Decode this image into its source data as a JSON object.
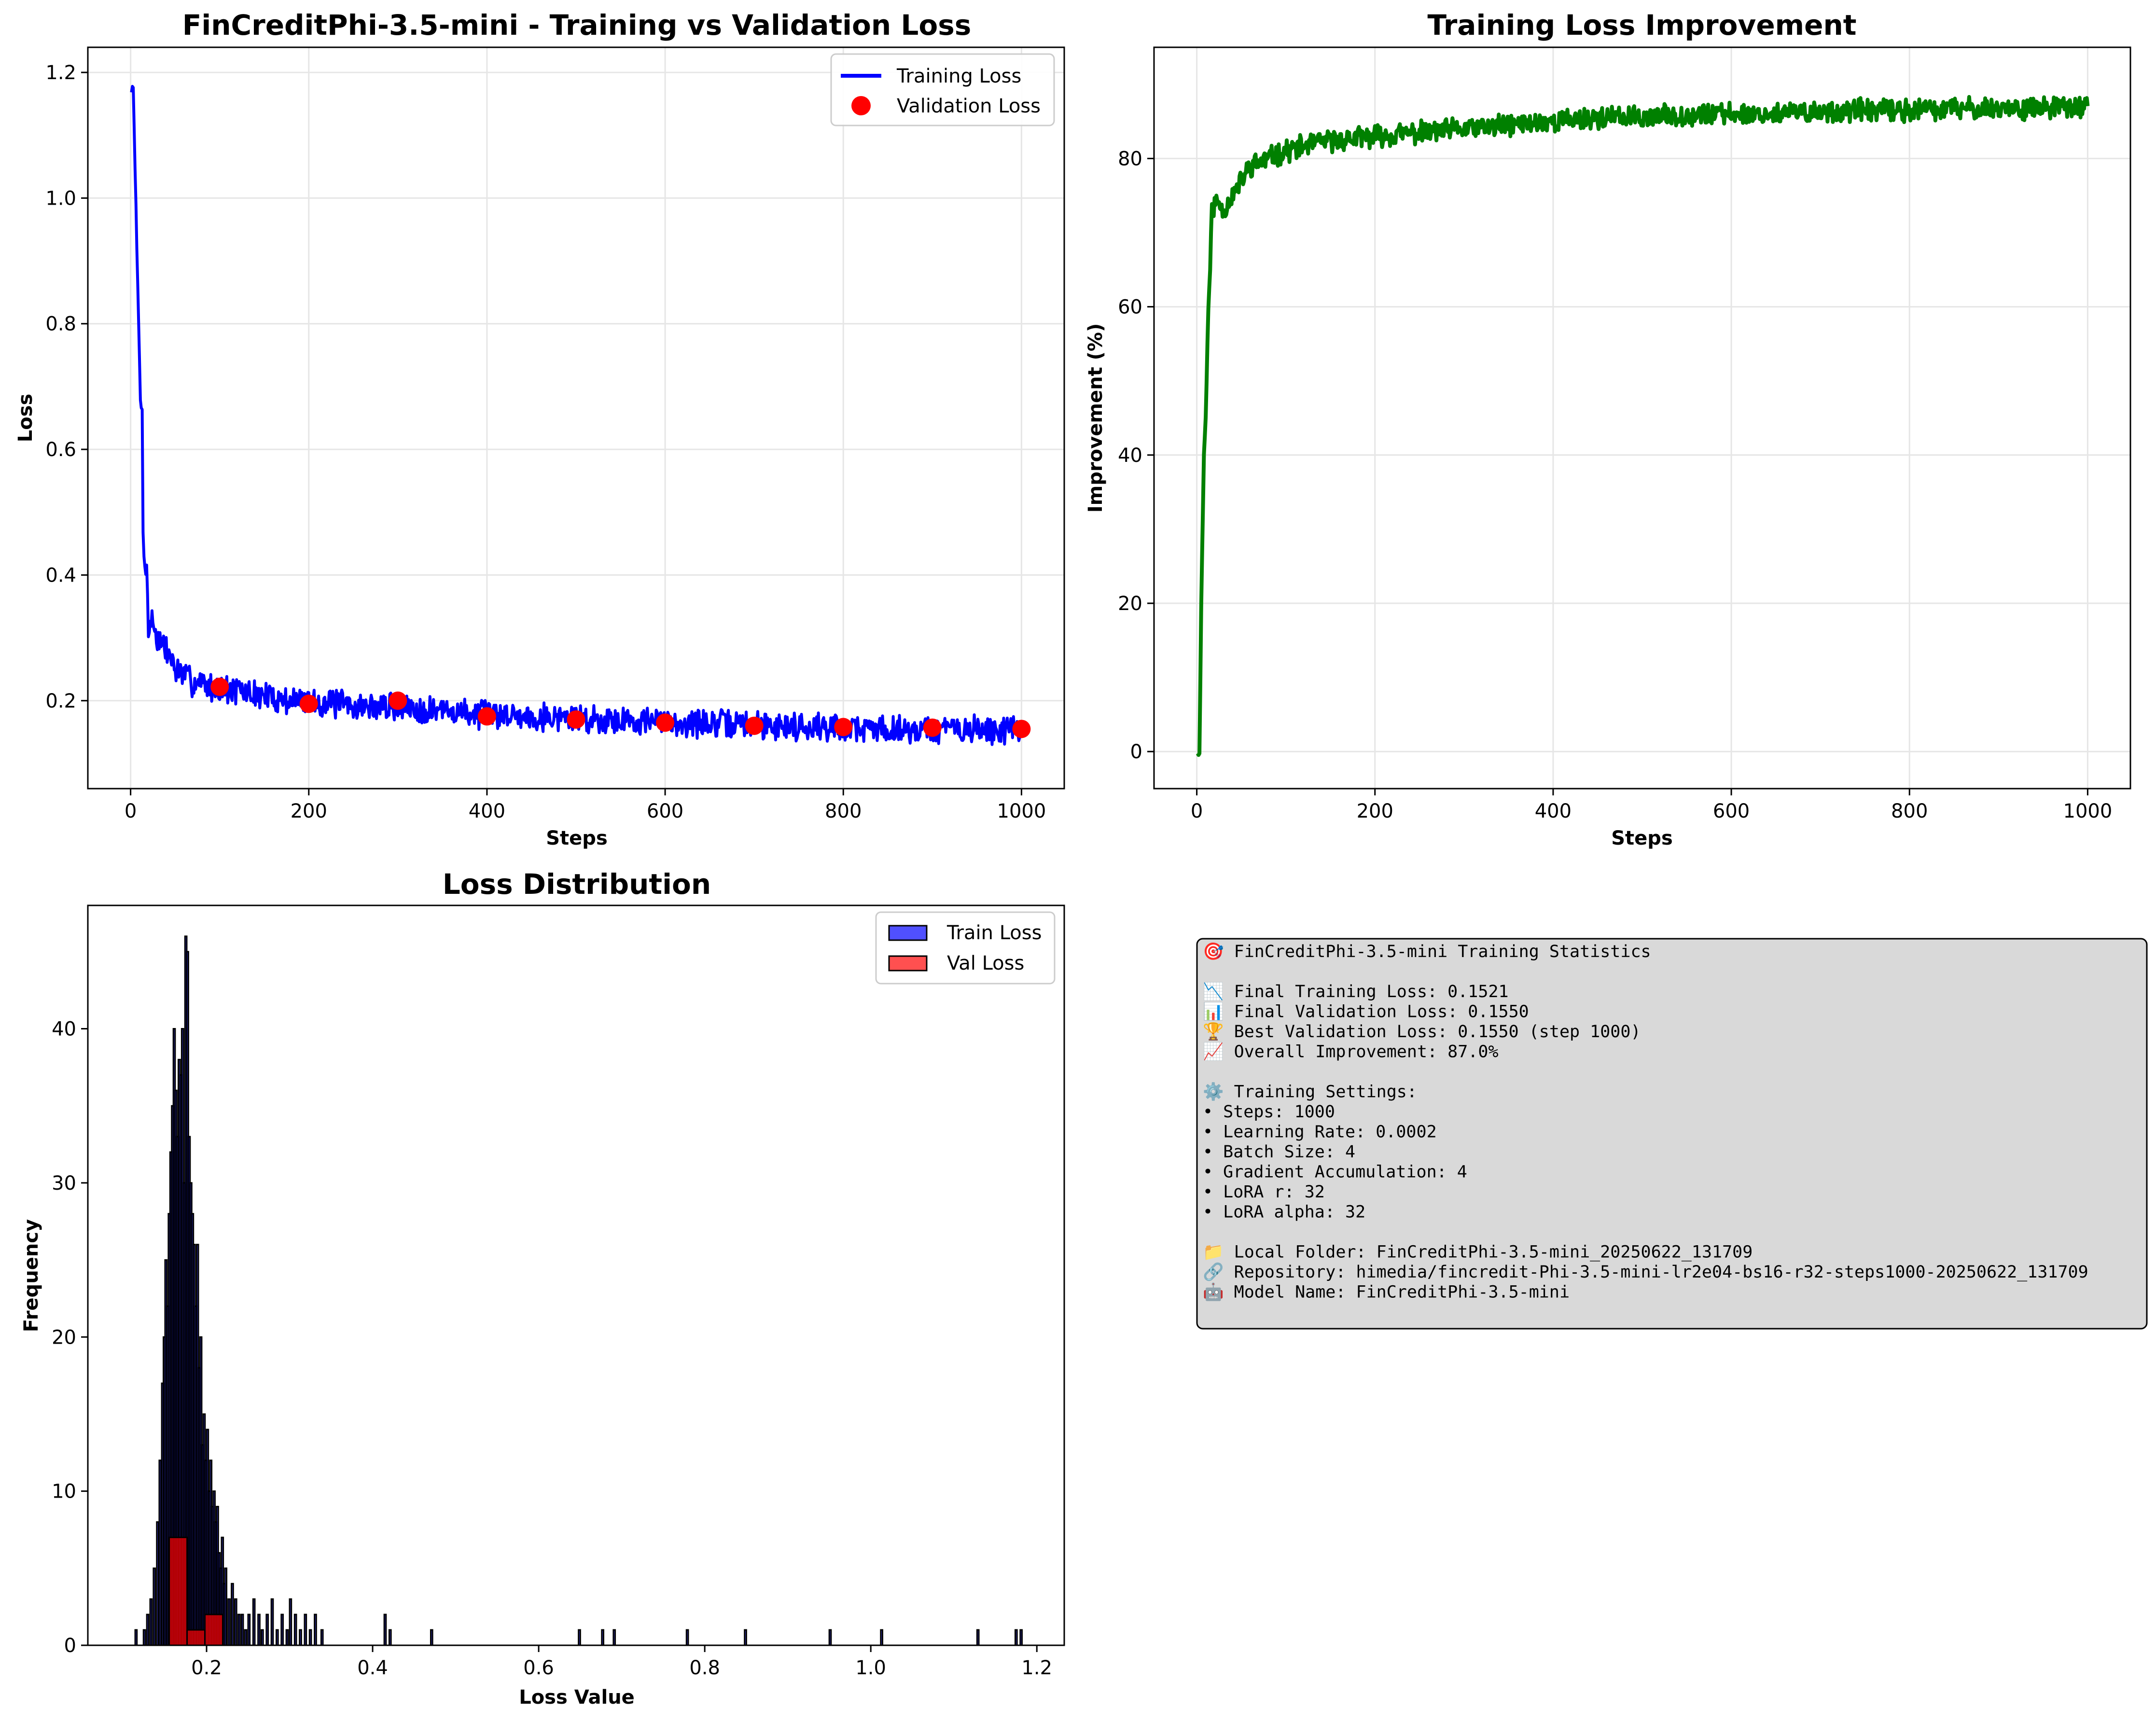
{
  "chart_data": [
    {
      "id": "loss",
      "type": "line",
      "title": "FinCreditPhi-3.5-mini - Training vs Validation Loss",
      "xlabel": "Steps",
      "ylabel": "Loss",
      "xlim": [
        -48,
        1048
      ],
      "ylim": [
        0.06,
        1.24
      ],
      "xticks": [
        0,
        200,
        400,
        600,
        800,
        1000
      ],
      "xtick_labels": [
        "0",
        "200",
        "400",
        "600",
        "800",
        "1000"
      ],
      "yticks": [
        0.2,
        0.4,
        0.6,
        0.8,
        1.0,
        1.2
      ],
      "ytick_labels": [
        "0.2",
        "0.4",
        "0.6",
        "0.8",
        "1.0",
        "1.2"
      ],
      "grid": true,
      "legend": "top-right",
      "series": [
        {
          "name": "Training Loss",
          "color": "#0000ff",
          "kind": "line",
          "points": [
            [
              1,
              1.17
            ],
            [
              3,
              1.18
            ],
            [
              5,
              1.05
            ],
            [
              7,
              0.92
            ],
            [
              9,
              0.8
            ],
            [
              11,
              0.68
            ],
            [
              13,
              0.66
            ],
            [
              14,
              0.47
            ],
            [
              16,
              0.42
            ],
            [
              18,
              0.41
            ],
            [
              20,
              0.31
            ],
            [
              23,
              0.33
            ],
            [
              26,
              0.32
            ],
            [
              30,
              0.3
            ],
            [
              35,
              0.29
            ],
            [
              40,
              0.28
            ],
            [
              45,
              0.27
            ],
            [
              50,
              0.25
            ],
            [
              60,
              0.24
            ],
            [
              70,
              0.23
            ],
            [
              80,
              0.23
            ],
            [
              90,
              0.22
            ],
            [
              100,
              0.22
            ],
            [
              120,
              0.215
            ],
            [
              140,
              0.21
            ],
            [
              160,
              0.205
            ],
            [
              180,
              0.2
            ],
            [
              200,
              0.2
            ],
            [
              230,
              0.195
            ],
            [
              260,
              0.19
            ],
            [
              300,
              0.19
            ],
            [
              340,
              0.185
            ],
            [
              380,
              0.18
            ],
            [
              420,
              0.178
            ],
            [
              460,
              0.175
            ],
            [
              500,
              0.172
            ],
            [
              540,
              0.17
            ],
            [
              580,
              0.168
            ],
            [
              620,
              0.165
            ],
            [
              660,
              0.163
            ],
            [
              700,
              0.162
            ],
            [
              740,
              0.16
            ],
            [
              780,
              0.158
            ],
            [
              820,
              0.156
            ],
            [
              860,
              0.155
            ],
            [
              900,
              0.154
            ],
            [
              940,
              0.153
            ],
            [
              980,
              0.153
            ],
            [
              1000,
              0.152
            ]
          ],
          "noise": 0.02
        },
        {
          "name": "Validation Loss",
          "color": "#ff0000",
          "kind": "scatter",
          "x": [
            100,
            200,
            300,
            400,
            500,
            600,
            700,
            800,
            900,
            1000
          ],
          "y": [
            0.222,
            0.195,
            0.2,
            0.175,
            0.17,
            0.165,
            0.16,
            0.158,
            0.157,
            0.155
          ]
        }
      ]
    },
    {
      "id": "improvement",
      "type": "line",
      "title": "Training Loss Improvement",
      "xlabel": "Steps",
      "ylabel": "Improvement (%)",
      "xlim": [
        -48,
        1048
      ],
      "ylim": [
        -5,
        95
      ],
      "xticks": [
        0,
        200,
        400,
        600,
        800,
        1000
      ],
      "xtick_labels": [
        "0",
        "200",
        "400",
        "600",
        "800",
        "1000"
      ],
      "yticks": [
        0,
        20,
        40,
        60,
        80
      ],
      "ytick_labels": [
        "0",
        "20",
        "40",
        "60",
        "80"
      ],
      "grid": true,
      "series": [
        {
          "color": "#008000",
          "points": [
            [
              1,
              0
            ],
            [
              3,
              -0.5
            ],
            [
              5,
              20
            ],
            [
              8,
              40
            ],
            [
              10,
              45
            ],
            [
              13,
              60
            ],
            [
              15,
              65
            ],
            [
              17,
              73
            ],
            [
              20,
              74
            ],
            [
              25,
              74
            ],
            [
              30,
              73
            ],
            [
              40,
              75
            ],
            [
              50,
              77
            ],
            [
              60,
              79
            ],
            [
              80,
              80
            ],
            [
              100,
              81
            ],
            [
              130,
              82
            ],
            [
              160,
              82.5
            ],
            [
              200,
              83
            ],
            [
              250,
              83.5
            ],
            [
              300,
              84
            ],
            [
              350,
              84.5
            ],
            [
              400,
              85
            ],
            [
              450,
              85.5
            ],
            [
              500,
              85.5
            ],
            [
              550,
              86
            ],
            [
              600,
              86
            ],
            [
              650,
              86
            ],
            [
              700,
              86.3
            ],
            [
              750,
              86.5
            ],
            [
              800,
              86.5
            ],
            [
              850,
              86.7
            ],
            [
              900,
              86.8
            ],
            [
              950,
              86.8
            ],
            [
              1000,
              87
            ]
          ],
          "noise": 1.3
        }
      ]
    },
    {
      "id": "distribution",
      "type": "bar",
      "title": "Loss Distribution",
      "xlabel": "Loss Value",
      "ylabel": "Frequency",
      "xlim": [
        0.057,
        1.233
      ],
      "ylim": [
        0,
        48
      ],
      "xticks": [
        0.2,
        0.4,
        0.6,
        0.8,
        1.0,
        1.2
      ],
      "xtick_labels": [
        "0.2",
        "0.4",
        "0.6",
        "0.8",
        "1.0",
        "1.2"
      ],
      "yticks": [
        0,
        10,
        20,
        30,
        40
      ],
      "ytick_labels": [
        "0",
        "10",
        "20",
        "30",
        "40"
      ],
      "legend": "top-right",
      "series": [
        {
          "name": "Train Loss",
          "color": "#0000ff",
          "legend_color": "#5050ff",
          "bin_width": 0.00213,
          "bins": [
            [
              0.114,
              1
            ],
            [
              0.124,
              1
            ],
            [
              0.128,
              2
            ],
            [
              0.132,
              3
            ],
            [
              0.136,
              5
            ],
            [
              0.14,
              8
            ],
            [
              0.143,
              12
            ],
            [
              0.146,
              17
            ],
            [
              0.148,
              20
            ],
            [
              0.15,
              25
            ],
            [
              0.152,
              22
            ],
            [
              0.154,
              28
            ],
            [
              0.156,
              32
            ],
            [
              0.158,
              35
            ],
            [
              0.16,
              40
            ],
            [
              0.162,
              36
            ],
            [
              0.164,
              33
            ],
            [
              0.166,
              38
            ],
            [
              0.168,
              37
            ],
            [
              0.17,
              40
            ],
            [
              0.172,
              30
            ],
            [
              0.174,
              46
            ],
            [
              0.176,
              45
            ],
            [
              0.178,
              33
            ],
            [
              0.18,
              30
            ],
            [
              0.182,
              28
            ],
            [
              0.184,
              26
            ],
            [
              0.186,
              22
            ],
            [
              0.188,
              26
            ],
            [
              0.19,
              18
            ],
            [
              0.192,
              20
            ],
            [
              0.194,
              13
            ],
            [
              0.196,
              15
            ],
            [
              0.198,
              12
            ],
            [
              0.2,
              14
            ],
            [
              0.202,
              10
            ],
            [
              0.204,
              12
            ],
            [
              0.206,
              9
            ],
            [
              0.208,
              10
            ],
            [
              0.21,
              8
            ],
            [
              0.212,
              9
            ],
            [
              0.214,
              6
            ],
            [
              0.216,
              5
            ],
            [
              0.218,
              7
            ],
            [
              0.22,
              4
            ],
            [
              0.222,
              5
            ],
            [
              0.226,
              3
            ],
            [
              0.23,
              4
            ],
            [
              0.234,
              3
            ],
            [
              0.238,
              2
            ],
            [
              0.242,
              2
            ],
            [
              0.246,
              1
            ],
            [
              0.25,
              2
            ],
            [
              0.256,
              3
            ],
            [
              0.262,
              2
            ],
            [
              0.266,
              1
            ],
            [
              0.272,
              2
            ],
            [
              0.278,
              3
            ],
            [
              0.284,
              1
            ],
            [
              0.29,
              2
            ],
            [
              0.296,
              1
            ],
            [
              0.3,
              3
            ],
            [
              0.306,
              2
            ],
            [
              0.312,
              1
            ],
            [
              0.318,
              2
            ],
            [
              0.324,
              1
            ],
            [
              0.33,
              2
            ],
            [
              0.338,
              1
            ],
            [
              0.414,
              2
            ],
            [
              0.42,
              1
            ],
            [
              0.47,
              1
            ],
            [
              0.648,
              1
            ],
            [
              0.676,
              1
            ],
            [
              0.69,
              1
            ],
            [
              0.778,
              1
            ],
            [
              0.848,
              1
            ],
            [
              0.95,
              1
            ],
            [
              1.012,
              1
            ],
            [
              1.128,
              1
            ],
            [
              1.174,
              1
            ],
            [
              1.18,
              1
            ]
          ]
        },
        {
          "name": "Val Loss",
          "color": "#ff0000",
          "legend_color": "#ff5050",
          "bins": [
            [
              0.155,
              0.1765,
              7
            ],
            [
              0.1765,
              0.198,
              1
            ],
            [
              0.198,
              0.2195,
              2
            ]
          ]
        }
      ]
    }
  ],
  "stats": {
    "lines": [
      "🎯 FinCreditPhi-3.5-mini Training Statistics",
      "",
      "📉 Final Training Loss: 0.1521",
      "📊 Final Validation Loss: 0.1550",
      "🏆 Best Validation Loss: 0.1550 (step 1000)",
      "📈 Overall Improvement: 87.0%",
      "",
      "⚙️ Training Settings:",
      "• Steps: 1000",
      "• Learning Rate: 0.0002",
      "• Batch Size: 4",
      "• Gradient Accumulation: 4",
      "• LoRA r: 32",
      "• LoRA alpha: 32",
      "",
      "📁 Local Folder: FinCreditPhi-3.5-mini_20250622_131709",
      "🔗 Repository: himedia/fincredit-Phi-3.5-mini-lr2e04-bs16-r32-steps1000-20250622_131709",
      "🤖 Model Name: FinCreditPhi-3.5-mini"
    ]
  }
}
